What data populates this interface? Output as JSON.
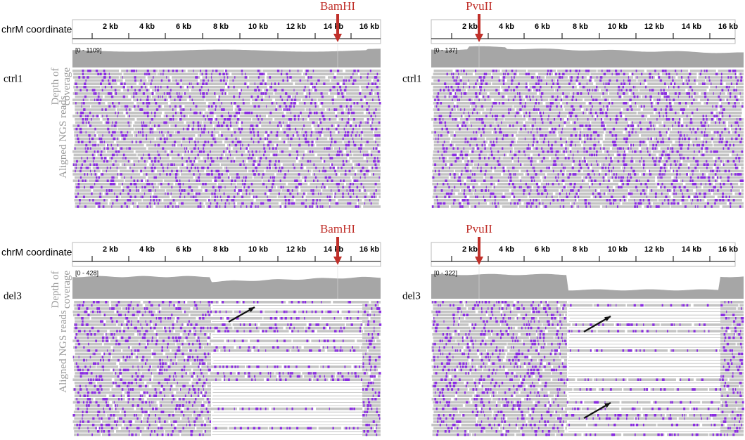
{
  "labels": {
    "coordinates": "chrM coordinates",
    "depth": "Depth of coverage",
    "reads": "Aligned NGS reads"
  },
  "ticks": [
    "2 kb",
    "4 kb",
    "6 kb",
    "8 kb",
    "10 kb",
    "12 kb",
    "14 kb",
    "16 kb"
  ],
  "panels": [
    {
      "sample": "ctrl1",
      "enzyme": "BamHI",
      "range": "[0 - 1109]"
    },
    {
      "sample": "ctrl1",
      "enzyme": "PvuII",
      "range": "[0 - 137]"
    },
    {
      "sample": "del3",
      "enzyme": "BamHI",
      "range": "[0 - 428]"
    },
    {
      "sample": "del3",
      "enzyme": "PvuII",
      "range": "[0 - 322]"
    }
  ]
}
